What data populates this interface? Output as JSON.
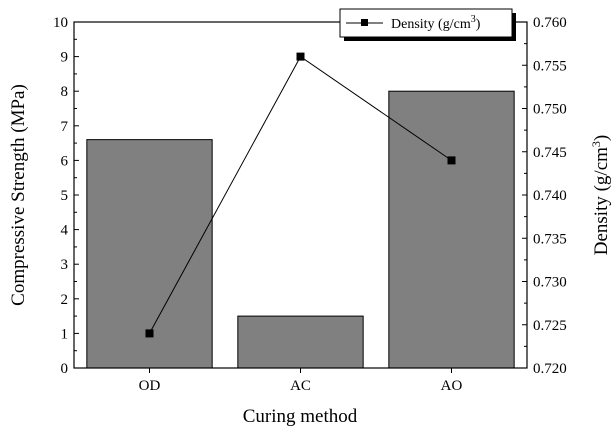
{
  "chart_data": {
    "type": "bar",
    "categories": [
      "OD",
      "AC",
      "AO"
    ],
    "xlabel": "Curing method",
    "series": [
      {
        "name": "Compressive Strength",
        "type": "bar",
        "axis": "left",
        "values": [
          6.6,
          1.5,
          8.0
        ],
        "color": "#808080"
      },
      {
        "name": "Density",
        "type": "line",
        "axis": "right",
        "values": [
          0.724,
          0.756,
          0.744
        ],
        "color": "#000000"
      }
    ],
    "left_axis": {
      "label": "Compressive Strength (MPa)",
      "range": [
        0,
        10
      ],
      "ticks": [
        "0",
        "1",
        "2",
        "3",
        "4",
        "5",
        "6",
        "7",
        "8",
        "9",
        "10"
      ]
    },
    "right_axis": {
      "label_main": "Density (g/cm",
      "label_sup": "3",
      "label_end": ")",
      "range": [
        0.72,
        0.76
      ],
      "ticks": [
        "0.720",
        "0.725",
        "0.730",
        "0.735",
        "0.740",
        "0.745",
        "0.750",
        "0.755",
        "0.760"
      ]
    },
    "legend": {
      "placement": "top-right",
      "text_main": "Density (g/cm",
      "text_sup": "3",
      "text_end": ")"
    },
    "grid": false
  }
}
